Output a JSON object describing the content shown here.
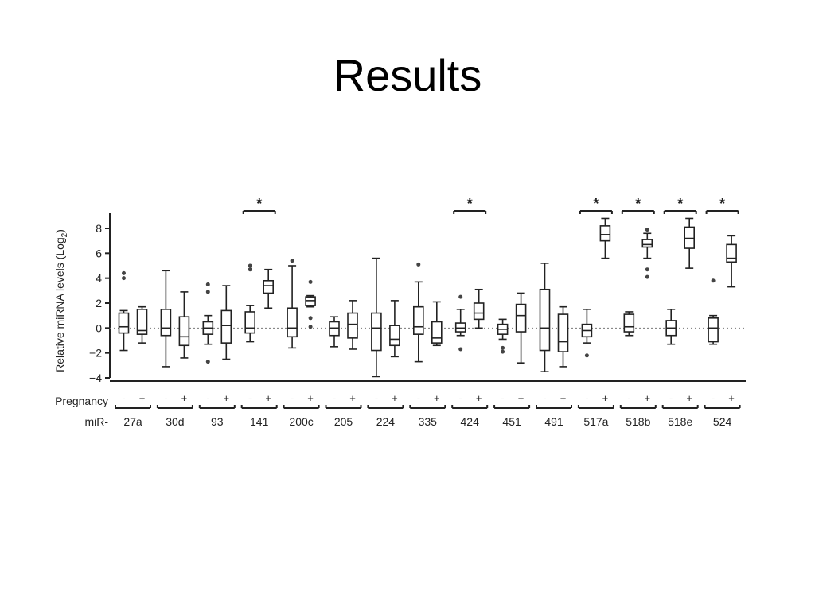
{
  "slide": {
    "title": "Results"
  },
  "chart_data": {
    "type": "box",
    "title": "",
    "xlabel": "",
    "ylabel": "Relative miRNA levels (Log",
    "ylabel_subscript": "2",
    "ylabel_close": ")",
    "ylim": [
      -4,
      9
    ],
    "yticks": [
      -4,
      -2,
      0,
      2,
      4,
      6,
      8
    ],
    "reference_line": 0,
    "row_labels": {
      "pregnancy": "Pregnancy",
      "mir": "miR-"
    },
    "pregnancy_values": [
      "-",
      "+"
    ],
    "significance_marker": "*",
    "colors": {
      "axis": "#222222",
      "box": "#222222",
      "reference": "#777777"
    },
    "groups": [
      {
        "name": "27a",
        "significant": false,
        "boxes": [
          {
            "pregnancy": "-",
            "min": -1.8,
            "q1": -0.4,
            "median": 0.1,
            "q3": 1.2,
            "max": 1.4,
            "outliers": [
              4.0,
              4.4
            ]
          },
          {
            "pregnancy": "+",
            "min": -1.2,
            "q1": -0.5,
            "median": -0.2,
            "q3": 1.5,
            "max": 1.7,
            "outliers": []
          }
        ]
      },
      {
        "name": "30d",
        "significant": false,
        "boxes": [
          {
            "pregnancy": "-",
            "min": -3.1,
            "q1": -0.6,
            "median": 0.0,
            "q3": 1.5,
            "max": 4.6,
            "outliers": []
          },
          {
            "pregnancy": "+",
            "min": -2.4,
            "q1": -1.4,
            "median": -0.7,
            "q3": 0.9,
            "max": 2.9,
            "outliers": []
          }
        ]
      },
      {
        "name": "93",
        "significant": false,
        "boxes": [
          {
            "pregnancy": "-",
            "min": -1.3,
            "q1": -0.5,
            "median": 0.0,
            "q3": 0.5,
            "max": 1.0,
            "outliers": [
              2.9,
              3.5,
              -2.7
            ]
          },
          {
            "pregnancy": "+",
            "min": -2.5,
            "q1": -1.2,
            "median": 0.2,
            "q3": 1.4,
            "max": 3.4,
            "outliers": []
          }
        ]
      },
      {
        "name": "141",
        "significant": true,
        "boxes": [
          {
            "pregnancy": "-",
            "min": -1.1,
            "q1": -0.4,
            "median": 0.0,
            "q3": 1.3,
            "max": 1.8,
            "outliers": [
              4.7,
              5.0
            ]
          },
          {
            "pregnancy": "+",
            "min": 1.6,
            "q1": 2.8,
            "median": 3.4,
            "q3": 3.8,
            "max": 4.7,
            "outliers": []
          }
        ]
      },
      {
        "name": "200c",
        "significant": false,
        "boxes": [
          {
            "pregnancy": "-",
            "min": -1.6,
            "q1": -0.7,
            "median": 0.0,
            "q3": 1.6,
            "max": 5.0,
            "outliers": [
              5.4
            ]
          },
          {
            "pregnancy": "+",
            "min": 1.7,
            "q1": 1.8,
            "median": 2.2,
            "q3": 2.5,
            "max": 2.6,
            "outliers": [
              3.7,
              0.8,
              0.1
            ]
          }
        ]
      },
      {
        "name": "205",
        "significant": false,
        "boxes": [
          {
            "pregnancy": "-",
            "min": -1.5,
            "q1": -0.6,
            "median": 0.0,
            "q3": 0.5,
            "max": 0.9,
            "outliers": []
          },
          {
            "pregnancy": "+",
            "min": -1.7,
            "q1": -0.8,
            "median": 0.3,
            "q3": 1.2,
            "max": 2.2,
            "outliers": []
          }
        ]
      },
      {
        "name": "224",
        "significant": false,
        "boxes": [
          {
            "pregnancy": "-",
            "min": -3.9,
            "q1": -1.8,
            "median": 0.0,
            "q3": 1.2,
            "max": 5.6,
            "outliers": []
          },
          {
            "pregnancy": "+",
            "min": -2.3,
            "q1": -1.4,
            "median": -0.9,
            "q3": 0.2,
            "max": 2.2,
            "outliers": []
          }
        ]
      },
      {
        "name": "335",
        "significant": false,
        "boxes": [
          {
            "pregnancy": "-",
            "min": -2.7,
            "q1": -0.5,
            "median": 0.1,
            "q3": 1.7,
            "max": 3.7,
            "outliers": [
              5.1
            ]
          },
          {
            "pregnancy": "+",
            "min": -1.4,
            "q1": -1.2,
            "median": -0.8,
            "q3": 0.5,
            "max": 2.1,
            "outliers": []
          }
        ]
      },
      {
        "name": "424",
        "significant": true,
        "boxes": [
          {
            "pregnancy": "-",
            "min": -0.6,
            "q1": -0.3,
            "median": 0.0,
            "q3": 0.4,
            "max": 1.5,
            "outliers": [
              2.5,
              -1.7
            ]
          },
          {
            "pregnancy": "+",
            "min": 0.0,
            "q1": 0.7,
            "median": 1.2,
            "q3": 2.0,
            "max": 3.1,
            "outliers": []
          }
        ]
      },
      {
        "name": "451",
        "significant": false,
        "boxes": [
          {
            "pregnancy": "-",
            "min": -0.9,
            "q1": -0.5,
            "median": -0.1,
            "q3": 0.3,
            "max": 0.7,
            "outliers": [
              -1.6,
              -1.9
            ]
          },
          {
            "pregnancy": "+",
            "min": -2.8,
            "q1": -0.3,
            "median": 1.0,
            "q3": 1.9,
            "max": 2.8,
            "outliers": []
          }
        ]
      },
      {
        "name": "491",
        "significant": false,
        "boxes": [
          {
            "pregnancy": "-",
            "min": -3.5,
            "q1": -1.8,
            "median": 0.0,
            "q3": 3.1,
            "max": 5.2,
            "outliers": []
          },
          {
            "pregnancy": "+",
            "min": -3.1,
            "q1": -1.9,
            "median": -1.1,
            "q3": 1.1,
            "max": 1.7,
            "outliers": []
          }
        ]
      },
      {
        "name": "517a",
        "significant": true,
        "boxes": [
          {
            "pregnancy": "-",
            "min": -1.2,
            "q1": -0.7,
            "median": -0.2,
            "q3": 0.3,
            "max": 1.5,
            "outliers": [
              -2.2
            ]
          },
          {
            "pregnancy": "+",
            "min": 5.6,
            "q1": 7.0,
            "median": 7.5,
            "q3": 8.2,
            "max": 8.8,
            "outliers": []
          }
        ]
      },
      {
        "name": "518b",
        "significant": true,
        "boxes": [
          {
            "pregnancy": "-",
            "min": -0.6,
            "q1": -0.3,
            "median": 0.1,
            "q3": 1.1,
            "max": 1.3,
            "outliers": []
          },
          {
            "pregnancy": "+",
            "min": 5.6,
            "q1": 6.5,
            "median": 6.7,
            "q3": 7.1,
            "max": 7.6,
            "outliers": [
              7.9,
              4.7,
              4.1
            ]
          }
        ]
      },
      {
        "name": "518e",
        "significant": true,
        "boxes": [
          {
            "pregnancy": "-",
            "min": -1.3,
            "q1": -0.6,
            "median": 0.0,
            "q3": 0.6,
            "max": 1.5,
            "outliers": []
          },
          {
            "pregnancy": "+",
            "min": 4.8,
            "q1": 6.4,
            "median": 7.2,
            "q3": 8.1,
            "max": 8.8,
            "outliers": []
          }
        ]
      },
      {
        "name": "524",
        "significant": true,
        "boxes": [
          {
            "pregnancy": "-",
            "min": -1.3,
            "q1": -1.1,
            "median": 0.0,
            "q3": 0.8,
            "max": 1.0,
            "outliers": [
              3.8
            ]
          },
          {
            "pregnancy": "+",
            "min": 3.3,
            "q1": 5.3,
            "median": 5.6,
            "q3": 6.7,
            "max": 7.4,
            "outliers": []
          }
        ]
      }
    ]
  }
}
